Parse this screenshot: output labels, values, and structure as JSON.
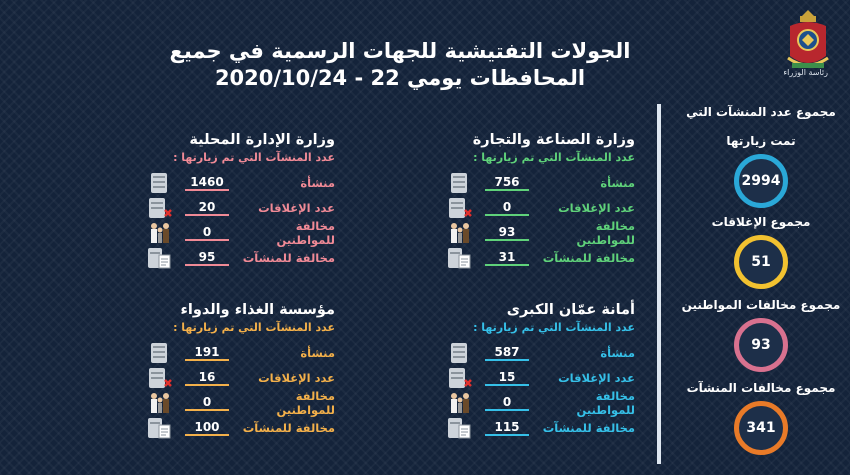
{
  "title": {
    "line1": "الجولات التفتيشية للجهات الرسمية في جميع",
    "line2": "المحافظات يومي  22 - 2020/10/24"
  },
  "logo": {
    "caption": "رئاسة الوزراء"
  },
  "totals": [
    {
      "label": "مجموع عدد المنشآت التي",
      "label2": "تمت زيارتها",
      "value": "2994",
      "color": "#2aa8d8"
    },
    {
      "label": "مجموع الإغلاقات",
      "value": "51",
      "color": "#f2c230"
    },
    {
      "label": "مجموع مخالفات المواطنين",
      "value": "93",
      "color": "#d8718f"
    },
    {
      "label": "مجموع مخالفات المنشآت",
      "value": "341",
      "color": "#e87a28"
    }
  ],
  "panels": {
    "trade": {
      "title": "وزارة الصناعة والتجارة",
      "subtitle": "عدد المنشآت التي تم زيارتها :",
      "rows": [
        {
          "label": "منشأة",
          "value": "756",
          "icon": "building-icon"
        },
        {
          "label": "عدد الإغلاقات",
          "value": "0",
          "icon": "closure-icon"
        },
        {
          "label": "مخالفة للمواطنين",
          "value": "93",
          "icon": "citizens-icon"
        },
        {
          "label": "مخالفة للمنشآت",
          "value": "31",
          "icon": "violation-doc-icon"
        }
      ]
    },
    "local": {
      "title": "وزارة الإدارة المحلية",
      "subtitle": "عدد المنشآت التي تم زيارتها :",
      "rows": [
        {
          "label": "منشأة",
          "value": "1460",
          "icon": "building-icon"
        },
        {
          "label": "عدد الإغلاقات",
          "value": "20",
          "icon": "closure-icon"
        },
        {
          "label": "مخالفة للمواطنين",
          "value": "0",
          "icon": "citizens-icon"
        },
        {
          "label": "مخالفة للمنشآت",
          "value": "95",
          "icon": "violation-doc-icon"
        }
      ]
    },
    "amman": {
      "title": "أمانة عمّان الكبرى",
      "subtitle": "عدد المنشآت التي تم زيارتها :",
      "rows": [
        {
          "label": "منشأة",
          "value": "587",
          "icon": "building-icon"
        },
        {
          "label": "عدد الإغلاقات",
          "value": "15",
          "icon": "closure-icon"
        },
        {
          "label": "مخالفة للمواطنين",
          "value": "0",
          "icon": "citizens-icon"
        },
        {
          "label": "مخالفة للمنشآت",
          "value": "115",
          "icon": "violation-doc-icon"
        }
      ]
    },
    "food": {
      "title": "مؤسسة الغذاء والدواء",
      "subtitle": "عدد المنشآت التي تم زيارتها :",
      "rows": [
        {
          "label": "منشأة",
          "value": "191",
          "icon": "building-icon"
        },
        {
          "label": "عدد الإغلاقات",
          "value": "16",
          "icon": "closure-icon"
        },
        {
          "label": "مخالفة للمواطنين",
          "value": "0",
          "icon": "citizens-icon"
        },
        {
          "label": "مخالفة للمنشآت",
          "value": "100",
          "icon": "violation-doc-icon"
        }
      ]
    }
  }
}
